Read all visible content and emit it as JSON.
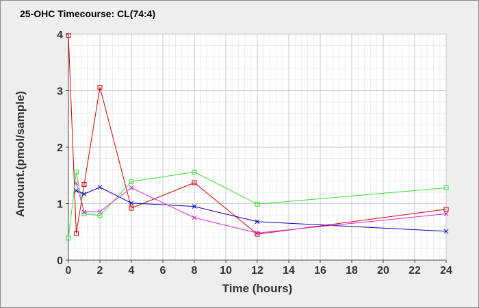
{
  "chart_data": {
    "type": "line",
    "title": "25-OHC Timecourse: CL(74:4)",
    "xlabel": "Time (hours)",
    "ylabel": "Amount.(pmol/sample)",
    "xlim": [
      0,
      24
    ],
    "ylim": [
      0,
      4
    ],
    "x_ticks": [
      0,
      2,
      4,
      6,
      8,
      10,
      12,
      14,
      16,
      18,
      20,
      22,
      24
    ],
    "y_ticks": [
      0,
      1,
      2,
      3,
      4
    ],
    "grid": true,
    "legend": "none",
    "series": [
      {
        "color": "#cc0000",
        "marker": "square",
        "x": [
          0,
          0.5,
          1,
          2,
          4,
          8,
          12,
          24
        ],
        "y": [
          3.98,
          0.47,
          1.34,
          3.06,
          0.92,
          1.37,
          0.46,
          0.9
        ]
      },
      {
        "color": "#33dd33",
        "marker": "square",
        "x": [
          0,
          0.5,
          1,
          2,
          4,
          8,
          12,
          24
        ],
        "y": [
          0.39,
          1.56,
          0.82,
          0.79,
          1.39,
          1.56,
          0.99,
          1.28
        ]
      },
      {
        "color": "#0000bb",
        "marker": "x",
        "x": [
          0.5,
          1,
          2,
          4,
          8,
          12,
          24
        ],
        "y": [
          1.23,
          1.17,
          1.29,
          1.01,
          0.95,
          0.68,
          0.51
        ]
      },
      {
        "color": "#dd22dd",
        "marker": "x",
        "x": [
          0.5,
          1,
          2,
          4,
          8,
          12,
          24
        ],
        "y": [
          1.36,
          0.85,
          0.86,
          1.28,
          0.75,
          0.48,
          0.82
        ]
      }
    ]
  }
}
